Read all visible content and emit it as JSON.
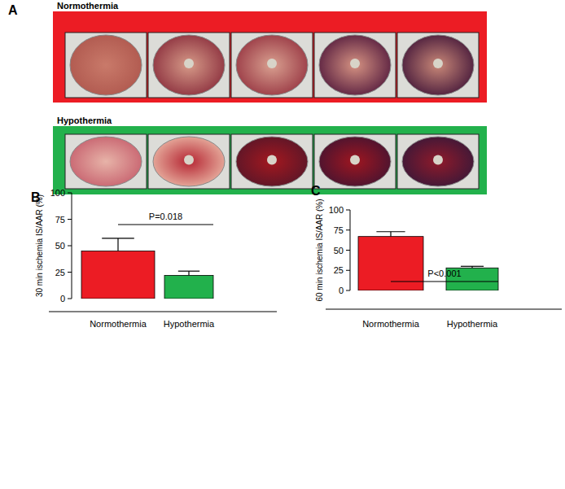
{
  "photo_panel": {
    "label": "A",
    "groups": [
      "Normothermia",
      "Hypothermia"
    ]
  },
  "chart_data": [
    {
      "type": "bar",
      "panel_label": "B",
      "y_label": "30 min ischemia IS/AAR (%)",
      "categories": [
        "Normothermia",
        "Hypothermia"
      ],
      "values": [
        45,
        22
      ],
      "errors": [
        12,
        4
      ],
      "colors": [
        "#ec1c24",
        "#22b14c"
      ],
      "ylim": [
        0,
        100
      ],
      "yticks": [
        0,
        25,
        50,
        75,
        100
      ],
      "annotation": "P=0.018"
    },
    {
      "type": "bar",
      "panel_label": "C",
      "y_label": "60 min ischemia IS/AAR (%)",
      "categories": [
        "Normothermia",
        "Hypothermia"
      ],
      "values": [
        67,
        28
      ],
      "errors": [
        6,
        2
      ],
      "colors": [
        "#ec1c24",
        "#22b14c"
      ],
      "ylim": [
        0,
        100
      ],
      "yticks": [
        0,
        25,
        50,
        75,
        100
      ],
      "annotation": "P<0.001"
    }
  ]
}
